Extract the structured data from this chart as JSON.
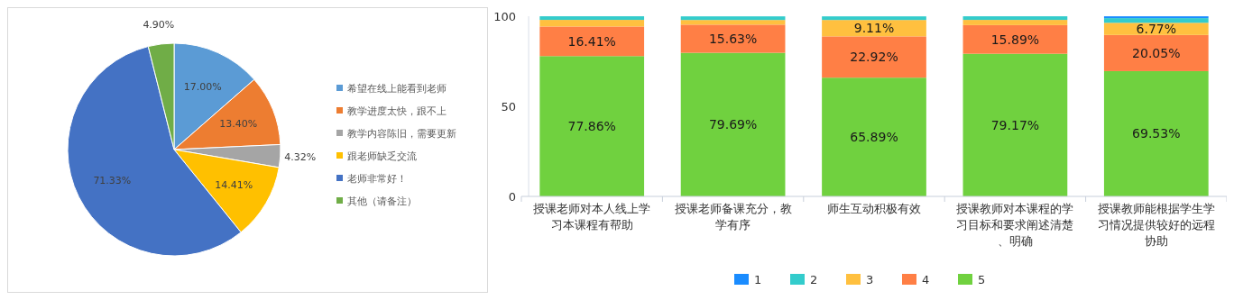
{
  "chart_data": [
    {
      "type": "pie",
      "categories": [
        "希望在线上能看到老师",
        "教学进度太快，跟不上",
        "教学内容陈旧，需要更新",
        "跟老师缺乏交流",
        "老师非常好！",
        "其他（请备注）"
      ],
      "values": [
        17.0,
        13.4,
        4.32,
        14.41,
        71.33,
        4.9
      ],
      "value_labels": [
        "17.00%",
        "13.40%",
        "4.32%",
        "14.41%",
        "71.33%",
        "4.90%"
      ],
      "colors": [
        "#5b9bd5",
        "#ed7d31",
        "#a5a5a5",
        "#ffc000",
        "#4472c4",
        "#70ad47"
      ],
      "legend": "right"
    },
    {
      "type": "bar",
      "stacked": true,
      "categories": [
        "授课老师对本人线上学习本课程有帮助",
        "授课老师备课充分，教学有序",
        "师生互动积极有效",
        "授课教师对本课程的学习目标和要求阐述清楚、明确",
        "授课教师能根据学生学习情况提供较好的远程协助"
      ],
      "ylim": [
        0,
        100
      ],
      "yticks": [
        0,
        50,
        100
      ],
      "grid": false,
      "legend": "bottom",
      "series": [
        {
          "name": "5",
          "color": "#70d13f",
          "values": [
            77.86,
            79.69,
            65.89,
            79.17,
            69.53
          ],
          "value_labels": [
            "77.86%",
            "79.69%",
            "65.89%",
            "79.17%",
            "69.53%"
          ]
        },
        {
          "name": "4",
          "color": "#ff7f45",
          "values": [
            16.41,
            15.63,
            22.92,
            15.89,
            20.05
          ],
          "value_labels": [
            "16.41%",
            "15.63%",
            "22.92%",
            "15.89%",
            "20.05%"
          ]
        },
        {
          "name": "3",
          "color": "#ffc03f",
          "values": [
            3.7,
            2.6,
            9.11,
            2.9,
            6.77
          ],
          "value_labels": [
            null,
            null,
            "9.11%",
            null,
            "6.77%"
          ]
        },
        {
          "name": "2",
          "color": "#33cccc",
          "values": [
            2.0,
            2.0,
            2.0,
            2.0,
            2.6
          ],
          "value_labels": [
            null,
            null,
            null,
            null,
            null
          ]
        },
        {
          "name": "1",
          "color": "#1a8cff",
          "values": [
            0,
            0,
            0,
            0,
            1.0
          ],
          "value_labels": [
            null,
            null,
            null,
            null,
            null
          ]
        }
      ]
    }
  ]
}
